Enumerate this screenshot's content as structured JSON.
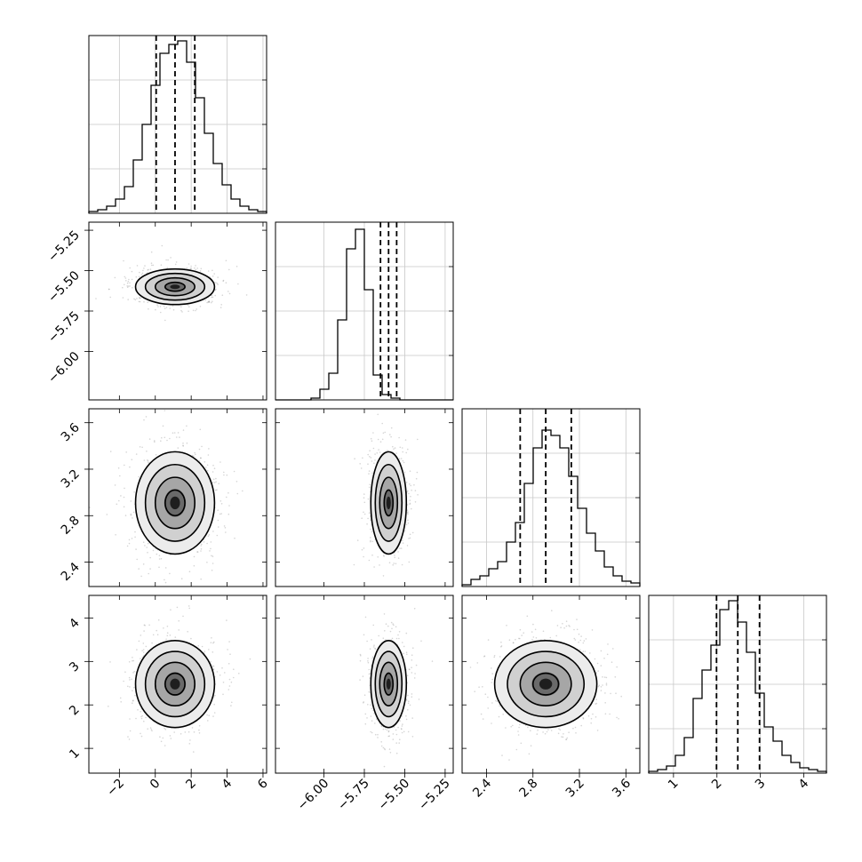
{
  "chart_data": {
    "type": "corner",
    "parameters": [
      {
        "ticks": [
          -2,
          0,
          2,
          4,
          6
        ],
        "tick_labels": [
          "−2",
          "0",
          "2",
          "4",
          "6"
        ],
        "range": [
          -3.7,
          6.2
        ],
        "median": 1.1,
        "q16": 0.05,
        "q84": 2.2
      },
      {
        "ticks": [
          -6.0,
          -5.75,
          -5.5,
          -5.25
        ],
        "tick_labels": [
          "−6.00",
          "−5.75",
          "−5.50",
          "−5.25"
        ],
        "range": [
          -6.3,
          -5.2
        ],
        "median": -5.6,
        "q16": -5.65,
        "q84": -5.55
      },
      {
        "ticks": [
          2.4,
          2.8,
          3.2,
          3.6
        ],
        "tick_labels": [
          "2.4",
          "2.8",
          "3.2",
          "3.6"
        ],
        "range": [
          2.19,
          3.72
        ],
        "median": 2.91,
        "q16": 2.69,
        "q84": 3.13
      },
      {
        "ticks": [
          1,
          2,
          3,
          4
        ],
        "tick_labels": [
          "1",
          "2",
          "3",
          "4"
        ],
        "range": [
          0.43,
          4.52
        ],
        "median": 2.48,
        "q16": 1.99,
        "q84": 2.98
      }
    ],
    "histograms": [
      [
        0.01,
        0.02,
        0.04,
        0.08,
        0.15,
        0.3,
        0.5,
        0.72,
        0.9,
        0.95,
        0.97,
        0.85,
        0.65,
        0.45,
        0.28,
        0.16,
        0.08,
        0.04,
        0.02,
        0.01
      ],
      [
        0.0,
        0.0,
        0.0,
        0.0,
        0.01,
        0.06,
        0.15,
        0.45,
        0.85,
        0.96,
        0.62,
        0.14,
        0.03,
        0.01,
        0.0,
        0.0,
        0.0,
        0.0,
        0.0,
        0.0
      ],
      [
        0.01,
        0.04,
        0.06,
        0.1,
        0.14,
        0.25,
        0.36,
        0.58,
        0.78,
        0.88,
        0.85,
        0.78,
        0.62,
        0.44,
        0.3,
        0.2,
        0.11,
        0.06,
        0.03,
        0.02
      ],
      [
        0.01,
        0.02,
        0.04,
        0.1,
        0.2,
        0.42,
        0.58,
        0.72,
        0.92,
        0.97,
        0.85,
        0.68,
        0.45,
        0.26,
        0.18,
        0.1,
        0.06,
        0.03,
        0.02,
        0.01
      ]
    ],
    "joint": [
      {
        "row": 1,
        "col": 0,
        "mean": [
          1.1,
          -5.6
        ],
        "sd": [
          1.1,
          0.055
        ]
      },
      {
        "row": 2,
        "col": 0,
        "mean": [
          1.1,
          2.91
        ],
        "sd": [
          1.1,
          0.22
        ]
      },
      {
        "row": 2,
        "col": 1,
        "mean": [
          -5.6,
          2.91
        ],
        "sd": [
          0.055,
          0.22
        ]
      },
      {
        "row": 3,
        "col": 0,
        "mean": [
          1.1,
          2.48
        ],
        "sd": [
          1.1,
          0.5
        ]
      },
      {
        "row": 3,
        "col": 1,
        "mean": [
          -5.6,
          2.48
        ],
        "sd": [
          0.055,
          0.5
        ]
      },
      {
        "row": 3,
        "col": 2,
        "mean": [
          2.91,
          2.48
        ],
        "sd": [
          0.22,
          0.5
        ]
      }
    ],
    "grid": true,
    "colors": {
      "line": "#000000",
      "grid": "#c8c8c8",
      "samples": "#888888"
    }
  }
}
